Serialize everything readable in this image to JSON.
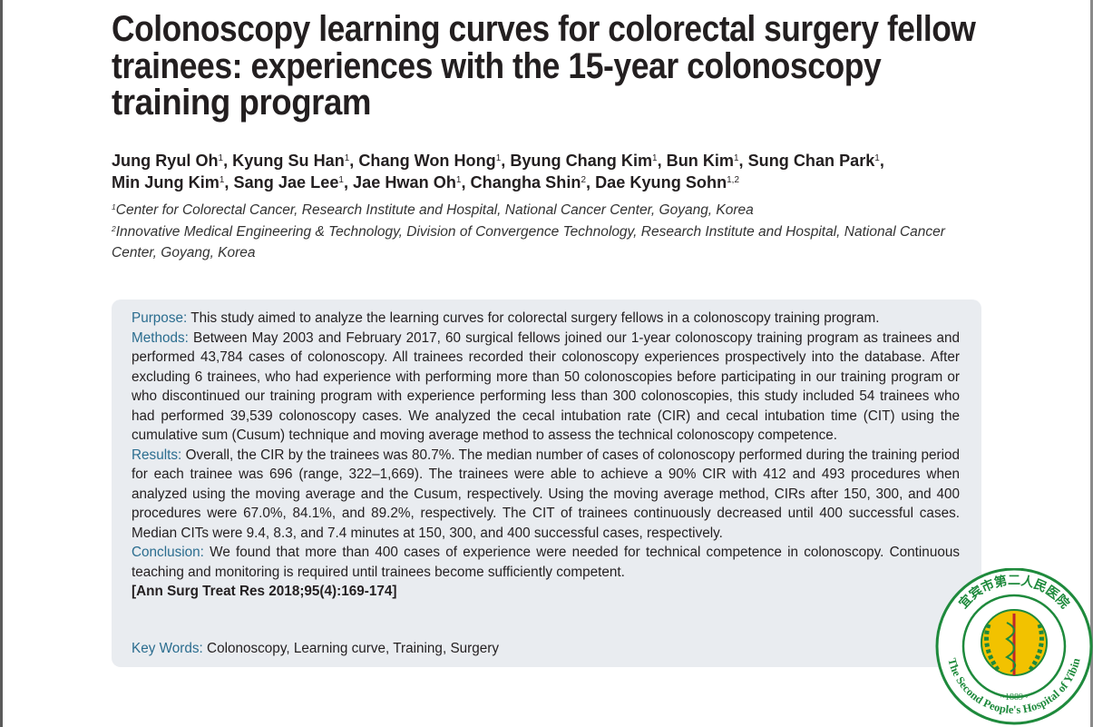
{
  "title": [
    "Colonoscopy learning curves for colorectal surgery fellow",
    "trainees: experiences with the 15-year colonoscopy",
    "training program"
  ],
  "author_lines": [
    [
      {
        "name": "Jung Ryul Oh",
        "sup": "1",
        "punct": ","
      },
      {
        "name": "Kyung Su Han",
        "sup": "1",
        "punct": ","
      },
      {
        "name": "Chang Won Hong",
        "sup": "1",
        "punct": ","
      },
      {
        "name": "Byung Chang Kim",
        "sup": "1",
        "punct": ","
      },
      {
        "name": "Bun Kim",
        "sup": "1",
        "punct": ","
      },
      {
        "name": "Sung Chan Park",
        "sup": "1",
        "punct": ","
      }
    ],
    [
      {
        "name": "Min Jung Kim",
        "sup": "1",
        "punct": ","
      },
      {
        "name": "Sang Jae Lee",
        "sup": "1",
        "punct": ","
      },
      {
        "name": "Jae Hwan Oh",
        "sup": "1",
        "punct": ","
      },
      {
        "name": "Changha Shin",
        "sup": "2",
        "punct": ","
      },
      {
        "name": "Dae Kyung Sohn",
        "sup": "1,2"
      }
    ]
  ],
  "affiliations": [
    {
      "sup": "1",
      "text": "Center for Colorectal Cancer, Research Institute and Hospital, National Cancer Center, Goyang, Korea"
    },
    {
      "sup": "2",
      "text": "Innovative Medical Engineering & Technology, Division of Convergence Technology, Research Institute and Hospital, National Cancer Center, Goyang, Korea"
    }
  ],
  "abstract": {
    "sections": [
      {
        "label": "Purpose:",
        "text": "This study aimed to analyze the learning curves for colorectal surgery fellows in a colonoscopy training program."
      },
      {
        "label": "Methods:",
        "text": "Between May 2003 and February 2017, 60 surgical fellows joined our 1-year colonoscopy training program as trainees and performed 43,784 cases of colonoscopy. All trainees recorded their colonoscopy experiences prospectively into the database. After excluding 6 trainees, who had experience with performing more than 50 colonoscopies before participating in our training program or who discontinued our training program with experience performing less than 300 colonoscopies, this study included 54 trainees who had performed 39,539 colonoscopy cases. We analyzed the cecal intubation rate (CIR) and cecal intubation time (CIT) using the cumulative sum (Cusum) technique and moving average method to assess the technical colonoscopy competence."
      },
      {
        "label": "Results:",
        "text": "Overall, the CIR by the trainees was 80.7%. The median number of cases of colonoscopy performed during the training period for each trainee was 696 (range, 322–1,669). The trainees were able to achieve a 90% CIR with 412 and 493 procedures when analyzed using the moving average and the Cusum, respectively. Using the moving average method, CIRs after 150, 300, and 400 procedures were 67.0%, 84.1%, and 89.2%, respectively. The CIT of trainees continuously decreased until 400 successful cases. Median CITs were 9.4, 8.3, and 7.4 minutes at 150, 300, and 400 successful cases, respectively."
      },
      {
        "label": "Conclusion:",
        "text": "We found that more than 400 cases of experience were needed for technical competence in colonoscopy. Continuous teaching and monitoring is required until trainees become sufficiently competent."
      }
    ],
    "citation": "[Ann Surg Treat Res 2018;95(4):169-174]",
    "keywords": {
      "label": "Key Words:",
      "text": "Colonoscopy, Learning curve, Training, Surgery"
    }
  },
  "stamp": {
    "chinese": "宜宾市第二人民医院",
    "english": "The Second People's Hospital of Yibin",
    "year": "~1889~"
  }
}
